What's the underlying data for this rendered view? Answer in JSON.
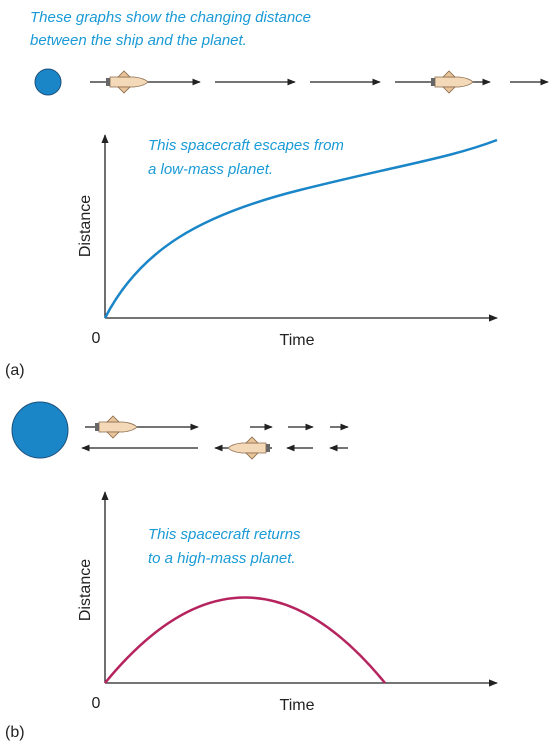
{
  "caption": [
    "These graphs show the changing distance",
    "between the ship and the planet."
  ],
  "panels": [
    {
      "label": "(a)",
      "annotation": [
        "This spacecraft escapes from",
        "a low-mass planet."
      ],
      "y_label": "Distance",
      "x_label": "Time",
      "origin": "0"
    },
    {
      "label": "(b)",
      "annotation": [
        "This spacecraft returns",
        "to a high-mass planet."
      ],
      "y_label": "Distance",
      "x_label": "Time",
      "origin": "0"
    }
  ]
}
